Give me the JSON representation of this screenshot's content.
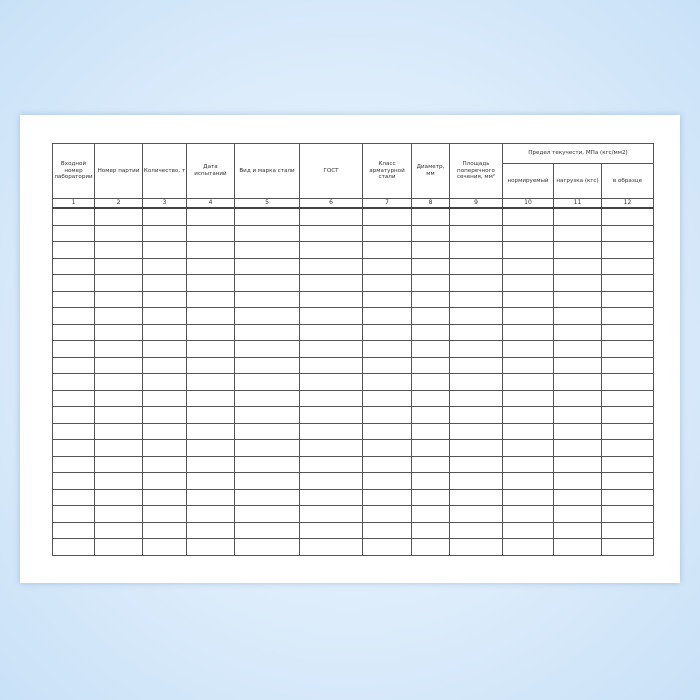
{
  "table": {
    "headers": [
      "Входной номер лаборатории",
      "Номер партии",
      "Количество, т",
      "Дата испытаний",
      "Вид и марка стали",
      "ГОСТ",
      "Класс арматурной стали",
      "Диаметр, мм",
      "Площадь поперечного сечения, мм²"
    ],
    "group_header": "Предел текучести, МПа (кгс/мм2)",
    "sub_headers": [
      "нормируемый",
      "нагрузка (кгс)",
      "в образце"
    ],
    "numbers": [
      "1",
      "2",
      "3",
      "4",
      "5",
      "6",
      "7",
      "8",
      "9",
      "10",
      "11",
      "12"
    ],
    "empty_rows": 21
  }
}
